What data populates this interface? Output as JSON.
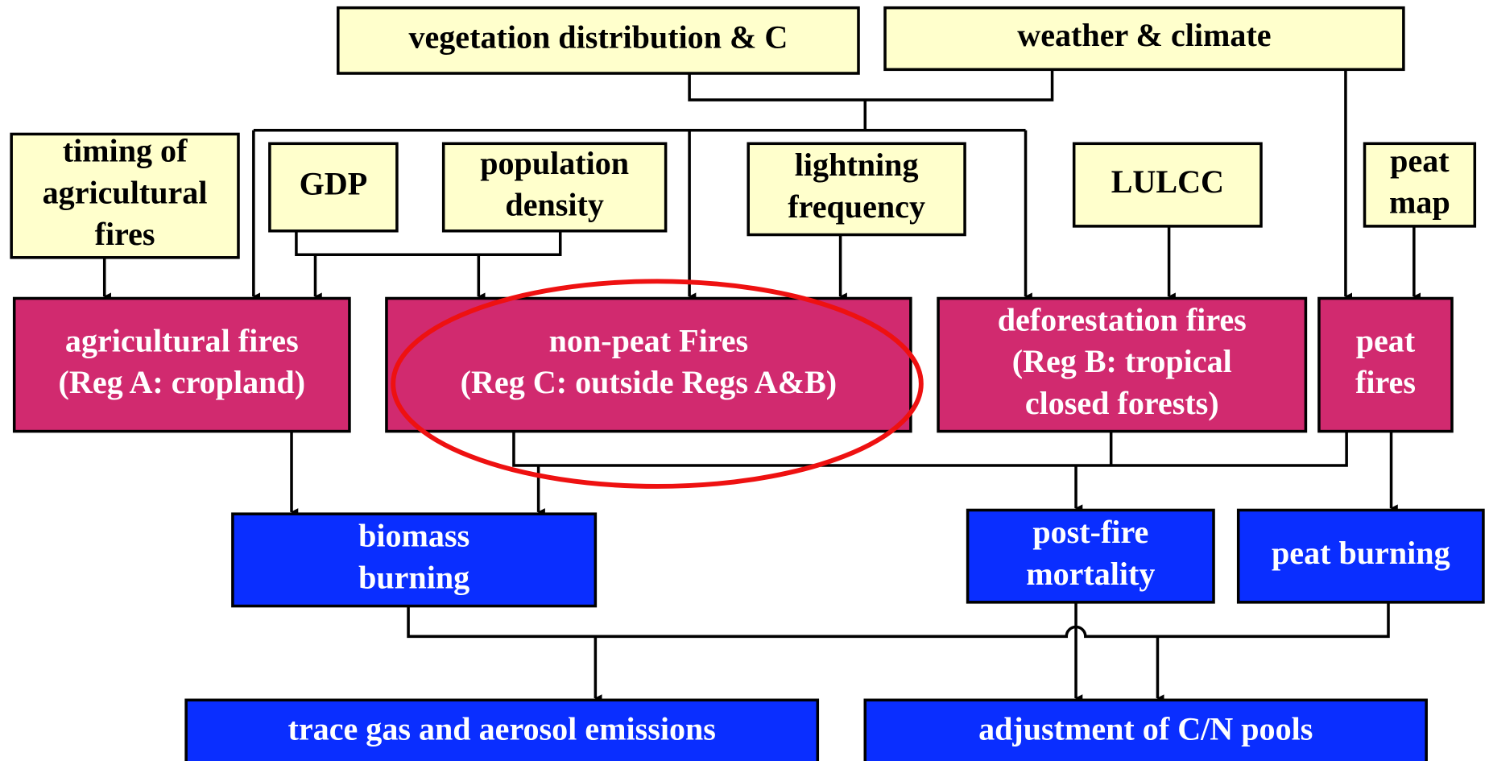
{
  "nodes": [
    {
      "lines": [
        "vegetation distribution & C"
      ]
    },
    {
      "lines": [
        "weather & climate"
      ]
    },
    {
      "lines": [
        "timing of",
        "agricultural",
        "fires"
      ]
    },
    {
      "lines": [
        "GDP"
      ]
    },
    {
      "lines": [
        "population",
        "density"
      ]
    },
    {
      "lines": [
        "lightning",
        "frequency"
      ]
    },
    {
      "lines": [
        "LULCC"
      ]
    },
    {
      "lines": [
        "peat",
        "map"
      ]
    },
    {
      "lines": [
        "agricultural fires",
        "(Reg A: cropland)"
      ]
    },
    {
      "lines": [
        "non-peat Fires",
        "(Reg C: outside Regs A&B)"
      ]
    },
    {
      "lines": [
        "deforestation fires",
        "(Reg B: tropical",
        "closed forests)"
      ]
    },
    {
      "lines": [
        "peat",
        "fires"
      ]
    },
    {
      "lines": [
        "biomass",
        "burning"
      ]
    },
    {
      "lines": [
        "post-fire",
        "mortality"
      ]
    },
    {
      "lines": [
        "peat burning"
      ]
    },
    {
      "lines": [
        "trace gas and aerosol emissions"
      ]
    },
    {
      "lines": [
        "adjustment of C/N pools"
      ]
    }
  ]
}
